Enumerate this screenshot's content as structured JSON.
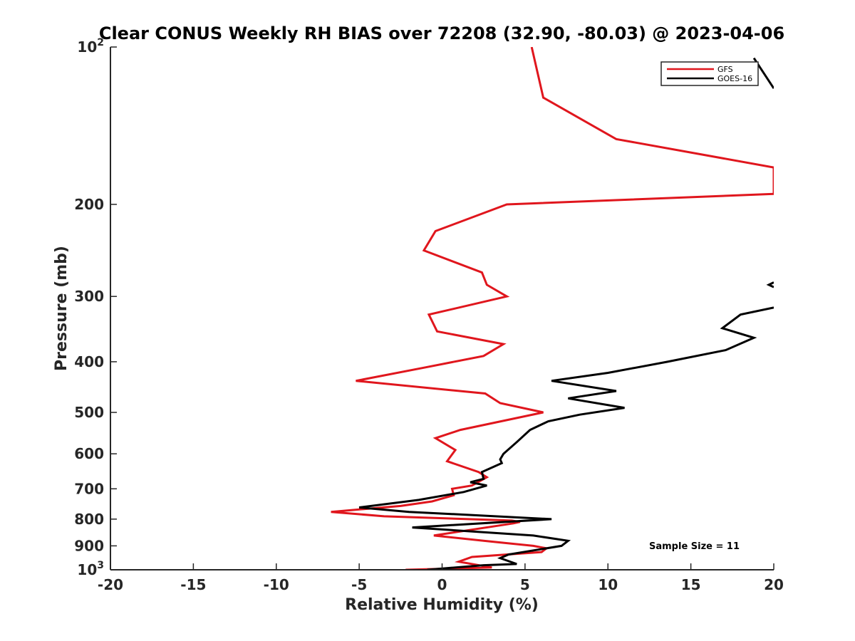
{
  "chart_data": {
    "type": "line",
    "title": "Clear CONUS Weekly RH BIAS over 72208 (32.90, -80.03) @ 2023-04-06",
    "xlabel": "Relative Humidity (%)",
    "ylabel": "Pressure (mb)",
    "xlim": [
      -20,
      20
    ],
    "ylim": [
      100,
      1000
    ],
    "y_scale": "log",
    "y_reversed": true,
    "x_ticks": [
      "-20",
      "-15",
      "-10",
      "-5",
      "0",
      "5",
      "10",
      "15",
      "20"
    ],
    "y_ticks": [
      {
        "value": 100,
        "base": "10",
        "exp": "2"
      },
      {
        "value": 200,
        "label": "200"
      },
      {
        "value": 300,
        "label": "300"
      },
      {
        "value": 400,
        "label": "400"
      },
      {
        "value": 500,
        "label": "500"
      },
      {
        "value": 600,
        "label": "600"
      },
      {
        "value": 700,
        "label": "700"
      },
      {
        "value": 800,
        "label": "800"
      },
      {
        "value": 900,
        "label": "900"
      },
      {
        "value": 1000,
        "base": "10",
        "exp": "3"
      }
    ],
    "grid": false,
    "legend_position": "top-right",
    "annotation": "Sample Size = 11",
    "series": [
      {
        "name": "GFS",
        "color": "#e0161d",
        "points": [
          [
            5.4,
            100
          ],
          [
            6.1,
            125
          ],
          [
            10.5,
            150
          ],
          [
            20.0,
            170
          ],
          [
            20.0,
            191
          ],
          [
            3.9,
            200
          ],
          [
            -0.4,
            225
          ],
          [
            -1.1,
            245
          ],
          [
            2.4,
            270
          ],
          [
            2.7,
            285
          ],
          [
            3.9,
            300
          ],
          [
            -0.8,
            325
          ],
          [
            -0.3,
            350
          ],
          [
            3.7,
            370
          ],
          [
            2.5,
            390
          ],
          [
            -1.0,
            410
          ],
          [
            -5.2,
            435
          ],
          [
            2.6,
            460
          ],
          [
            3.5,
            480
          ],
          [
            6.1,
            500
          ],
          [
            1.1,
            540
          ],
          [
            -0.4,
            560
          ],
          [
            0.8,
            590
          ],
          [
            0.3,
            620
          ],
          [
            2.2,
            650
          ],
          [
            2.7,
            665
          ],
          [
            1.8,
            690
          ],
          [
            0.6,
            700
          ],
          [
            0.7,
            720
          ],
          [
            -0.6,
            740
          ],
          [
            -2.5,
            755
          ],
          [
            -6.7,
            775
          ],
          [
            -3.5,
            790
          ],
          [
            4.2,
            805
          ],
          [
            4.7,
            810
          ],
          [
            4.3,
            815
          ],
          [
            -0.5,
            860
          ],
          [
            2.5,
            880
          ],
          [
            5.5,
            900
          ],
          [
            6.3,
            910
          ],
          [
            6.0,
            925
          ],
          [
            1.8,
            945
          ],
          [
            1.0,
            965
          ],
          [
            3.0,
            990
          ],
          [
            -2.2,
            1000
          ]
        ]
      },
      {
        "name": "GOES-16",
        "color": "#000000",
        "points": [
          [
            20.0,
            120
          ],
          [
            18.8,
            105
          ],
          null,
          [
            20.0,
            282
          ],
          [
            19.7,
            285
          ],
          [
            20.0,
            288
          ],
          null,
          [
            20.0,
            315
          ],
          [
            18.0,
            325
          ],
          [
            16.9,
            345
          ],
          [
            18.8,
            360
          ],
          [
            17.1,
            380
          ],
          [
            13.6,
            400
          ],
          [
            10.0,
            420
          ],
          [
            6.6,
            435
          ],
          [
            10.5,
            455
          ],
          [
            7.6,
            470
          ],
          [
            11.0,
            490
          ],
          [
            8.3,
            505
          ],
          [
            6.4,
            520
          ],
          [
            5.3,
            540
          ],
          [
            4.5,
            570
          ],
          [
            3.7,
            600
          ],
          [
            3.5,
            615
          ],
          [
            3.6,
            625
          ],
          [
            2.4,
            650
          ],
          [
            2.5,
            670
          ],
          [
            1.7,
            680
          ],
          [
            2.7,
            690
          ],
          [
            1.3,
            710
          ],
          [
            -1.4,
            735
          ],
          [
            -5.0,
            760
          ],
          [
            -2.0,
            775
          ],
          [
            6.6,
            800
          ],
          [
            -1.8,
            830
          ],
          [
            5.5,
            860
          ],
          [
            7.6,
            880
          ],
          [
            7.2,
            900
          ],
          [
            4.0,
            935
          ],
          [
            3.5,
            950
          ],
          [
            4.5,
            975
          ],
          [
            2.5,
            980
          ],
          [
            -0.9,
            1000
          ]
        ]
      }
    ]
  }
}
